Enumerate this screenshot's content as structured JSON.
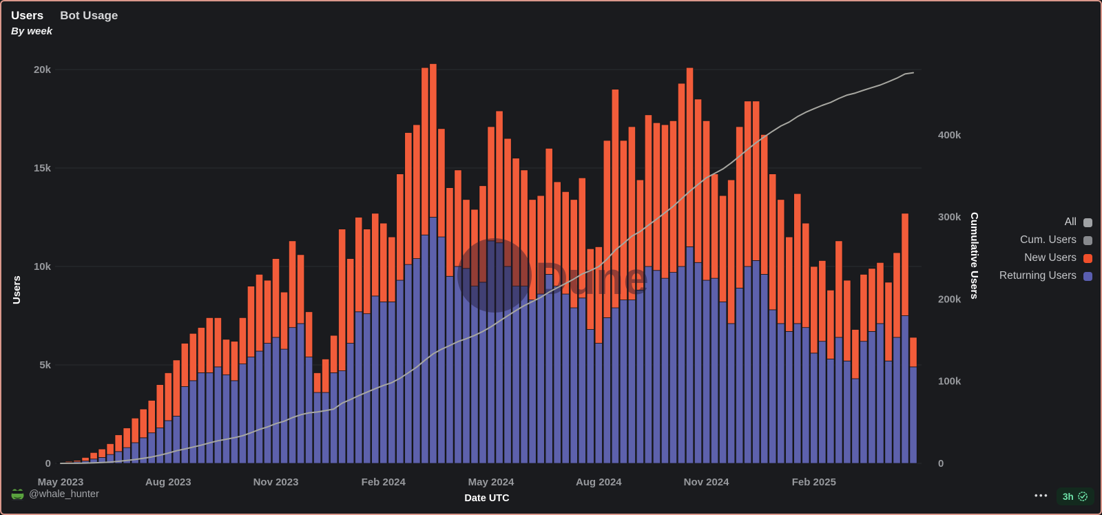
{
  "header": {
    "title": "Users",
    "dashboard": "Bot Usage",
    "byline": "By week"
  },
  "watermark": {
    "text": "Dune"
  },
  "legend": {
    "items": [
      {
        "label": "All",
        "color": "#A0A2A5",
        "bright": true
      },
      {
        "label": "Cum. Users",
        "color": "#888A8E",
        "bright": false
      },
      {
        "label": "New Users",
        "color": "#F04F2B",
        "bright": false
      },
      {
        "label": "Returning Users",
        "color": "#5A5EB0",
        "bright": false
      }
    ]
  },
  "footer": {
    "handle": "@whale_hunter",
    "dots": "•••",
    "badge": "3h"
  },
  "colors": {
    "background": "#1A1B1E",
    "border": "#DA988B",
    "gridline": "#2B2D30",
    "tick_text": "#97999D",
    "new_users": "#F25C3A",
    "returning_users": "#5D61AC",
    "cumulative_line": "#A7A7A1",
    "badge_green": "#6FE3A9"
  },
  "chart_data": {
    "type": "bar",
    "subtype": "stacked weekly bars + cumulative line (dual axis)",
    "title": "Users — Bot Usage (By week)",
    "x_axis": {
      "label": "Date UTC",
      "tick_labels": [
        "May 2023",
        "Aug 2023",
        "Nov 2023",
        "Feb 2024",
        "May 2024",
        "Aug 2024",
        "Nov 2024",
        "Feb 2025"
      ],
      "tick_indices": [
        0,
        13,
        26,
        39,
        52,
        65,
        78,
        91
      ],
      "n_bars": 104,
      "unit": "week"
    },
    "y_left": {
      "label": "Users",
      "ticks": [
        "0",
        "5k",
        "10k",
        "15k",
        "20k"
      ],
      "tick_values_k": [
        0,
        5,
        10,
        15,
        20
      ]
    },
    "y_right": {
      "label": "Cumulative Users",
      "ticks": [
        "0",
        "100k",
        "200k",
        "300k",
        "400k"
      ],
      "tick_values_k": [
        0,
        100,
        200,
        300,
        400
      ],
      "visible_max_k": 478
    },
    "series": [
      {
        "name": "Returning Users",
        "role": "bar-bottom",
        "axis": "left",
        "color": "#5D61AC",
        "values_k": [
          0.03,
          0.05,
          0.08,
          0.12,
          0.22,
          0.3,
          0.45,
          0.6,
          0.8,
          1.05,
          1.3,
          1.55,
          1.8,
          2.17,
          2.4,
          3.9,
          4.2,
          4.6,
          4.6,
          4.9,
          4.5,
          4.2,
          5.05,
          5.4,
          5.7,
          6.1,
          6.4,
          5.8,
          6.9,
          7.1,
          5.4,
          3.6,
          3.6,
          4.6,
          4.7,
          6.1,
          7.7,
          7.6,
          8.5,
          8.2,
          8.2,
          9.3,
          10.1,
          10.4,
          11.6,
          12.5,
          11.5,
          9.5,
          10.0,
          9.9,
          9.0,
          9.2,
          11.3,
          11.2,
          10.0,
          9.0,
          9.0,
          8.3,
          8.6,
          9.6,
          9.0,
          8.6,
          7.9,
          8.4,
          6.8,
          6.1,
          7.4,
          7.9,
          8.3,
          8.3,
          8.8,
          10.0,
          9.8,
          9.4,
          9.7,
          10.0,
          11.0,
          10.2,
          9.3,
          9.4,
          8.2,
          7.1,
          8.9,
          10.0,
          10.3,
          9.6,
          7.8,
          7.1,
          6.7,
          7.1,
          6.9,
          5.6,
          6.2,
          5.3,
          6.4,
          5.2,
          4.3,
          6.2,
          6.7,
          7.1,
          5.2,
          6.4,
          7.5,
          4.9
        ]
      },
      {
        "name": "New Users",
        "role": "bar-top",
        "axis": "left",
        "color": "#F25C3A",
        "values_k": [
          0.02,
          0.05,
          0.07,
          0.18,
          0.33,
          0.43,
          0.55,
          0.85,
          1.0,
          1.25,
          1.46,
          1.65,
          2.2,
          2.43,
          2.85,
          2.2,
          2.4,
          2.3,
          2.8,
          2.5,
          1.8,
          2.0,
          2.35,
          3.6,
          3.9,
          3.2,
          4.0,
          2.9,
          4.4,
          3.5,
          2.3,
          1.0,
          1.7,
          1.9,
          7.2,
          4.3,
          4.8,
          4.3,
          4.2,
          4.0,
          3.3,
          5.4,
          6.7,
          6.8,
          8.5,
          7.8,
          5.5,
          4.5,
          4.9,
          3.5,
          3.9,
          4.9,
          5.8,
          6.7,
          6.5,
          6.5,
          5.9,
          5.1,
          5.0,
          6.4,
          5.3,
          5.2,
          5.5,
          6.1,
          4.1,
          4.9,
          9.0,
          11.1,
          8.1,
          8.8,
          5.6,
          7.7,
          7.5,
          7.8,
          7.7,
          9.3,
          9.1,
          8.3,
          8.1,
          5.3,
          5.4,
          7.3,
          8.2,
          8.4,
          8.1,
          7.1,
          6.9,
          6.3,
          4.8,
          6.6,
          5.3,
          4.4,
          4.1,
          3.5,
          4.9,
          4.1,
          2.5,
          3.4,
          3.2,
          3.1,
          4.0,
          4.3,
          5.2,
          1.5
        ]
      },
      {
        "name": "Cum. Users",
        "role": "line",
        "axis": "right",
        "color": "#A7A7A1",
        "values_k": [
          0.0,
          0.1,
          0.1,
          0.3,
          0.7,
          1.1,
          1.6,
          2.5,
          3.5,
          4.7,
          6.2,
          7.8,
          10.0,
          12.5,
          15.3,
          17.5,
          19.9,
          22.2,
          25.0,
          27.5,
          29.3,
          31.3,
          33.7,
          37.3,
          41.2,
          44.4,
          48.4,
          51.3,
          55.7,
          59.2,
          61.5,
          62.5,
          64.2,
          66.1,
          73.3,
          77.6,
          82.4,
          86.7,
          90.9,
          94.9,
          98.2,
          103.6,
          110.3,
          117.1,
          125.6,
          133.4,
          138.9,
          143.4,
          148.3,
          151.8,
          155.7,
          160.6,
          166.4,
          173.1,
          179.6,
          186.1,
          192.0,
          197.1,
          202.1,
          208.5,
          213.8,
          219.0,
          224.5,
          230.6,
          234.7,
          239.6,
          248.6,
          259.7,
          267.8,
          276.6,
          282.2,
          289.9,
          297.4,
          305.2,
          312.9,
          322.2,
          331.3,
          339.6,
          347.7,
          353.0,
          358.4,
          365.7,
          373.9,
          382.3,
          390.4,
          397.5,
          404.4,
          410.7,
          415.5,
          422.1,
          427.4,
          431.8,
          435.9,
          439.4,
          444.3,
          448.4,
          450.9,
          454.3,
          457.5,
          460.6,
          464.6,
          468.9,
          474.1,
          475.6
        ]
      }
    ],
    "grid": "horizontal only",
    "legend_position": "right, outside plot"
  }
}
